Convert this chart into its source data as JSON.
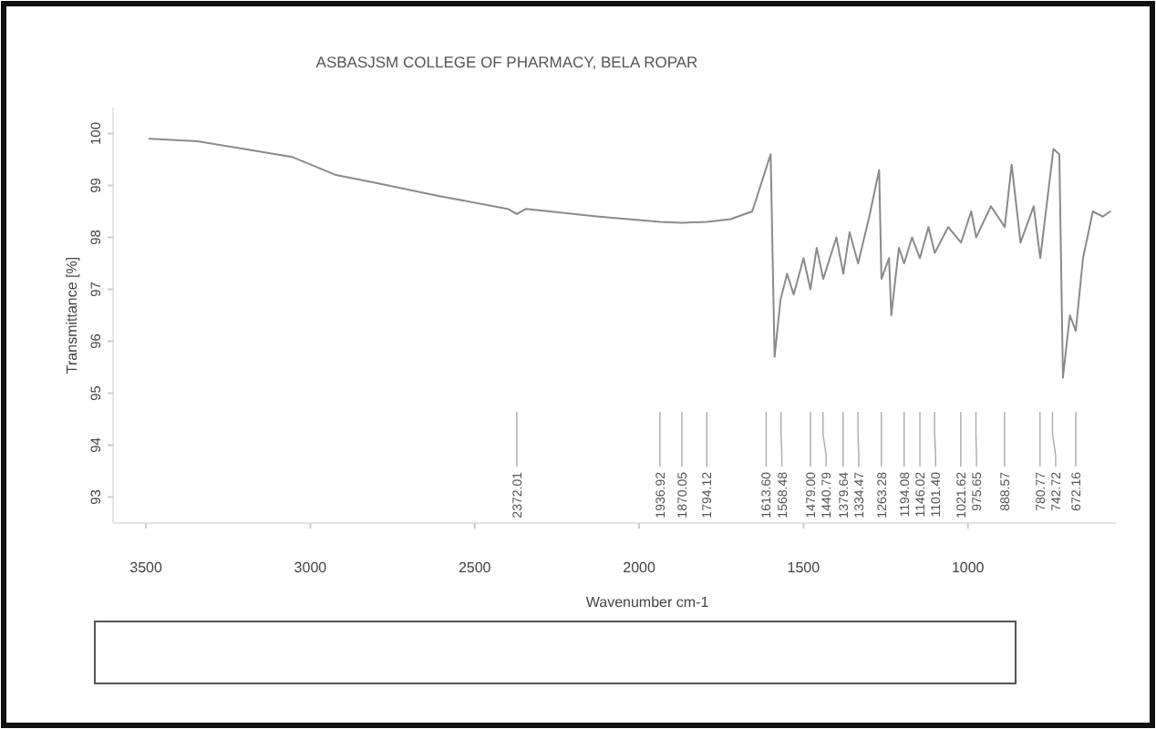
{
  "chart_data": {
    "type": "line",
    "title": "ASBASJSM COLLEGE OF PHARMACY, BELA ROPAR",
    "xlabel": "Wavenumber cm-1",
    "ylabel": "Transmittance [%]",
    "x": [
      3490,
      3344,
      3200,
      3056,
      2922,
      2800,
      2611,
      2400,
      2372,
      2344,
      2122,
      1936,
      1870,
      1794,
      1722,
      1656,
      1600,
      1588,
      1570,
      1550,
      1530,
      1500,
      1479,
      1460,
      1440,
      1420,
      1400,
      1379,
      1360,
      1334,
      1300,
      1270,
      1263,
      1240,
      1233,
      1210,
      1194,
      1170,
      1146,
      1120,
      1101,
      1060,
      1021,
      990,
      975,
      930,
      888,
      867,
      840,
      800,
      780,
      740,
      722,
      711,
      690,
      672,
      650,
      620,
      590,
      567
    ],
    "series": [
      {
        "color": "#8a8a8a",
        "values": [
          99.9,
          99.85,
          99.7,
          99.55,
          99.2,
          99.05,
          98.8,
          98.55,
          98.45,
          98.55,
          98.4,
          98.3,
          98.28,
          98.3,
          98.35,
          98.5,
          99.6,
          95.7,
          96.8,
          97.3,
          96.9,
          97.6,
          97.0,
          97.8,
          97.2,
          97.6,
          98.0,
          97.3,
          98.1,
          97.5,
          98.4,
          99.3,
          97.2,
          97.6,
          96.5,
          97.8,
          97.5,
          98.0,
          97.6,
          98.2,
          97.7,
          98.2,
          97.9,
          98.5,
          98.0,
          98.6,
          98.2,
          99.4,
          97.9,
          98.6,
          97.6,
          99.7,
          99.6,
          95.3,
          96.5,
          96.2,
          97.6,
          98.5,
          98.4,
          98.5
        ]
      }
    ],
    "xlim": [
      3600,
      550
    ],
    "xticks": [
      3500,
      3000,
      2500,
      2000,
      1500,
      1000
    ],
    "ylim": [
      92.5,
      100.5
    ],
    "yticks": [
      93,
      94,
      95,
      96,
      97,
      98,
      99,
      100
    ],
    "grid": false,
    "line_style": "solid",
    "marker": "none",
    "annotations": [
      {
        "text": "2372.01",
        "x": 2372.01
      },
      {
        "text": "1936.92",
        "x": 1936.92
      },
      {
        "text": "1870.05",
        "x": 1870.05
      },
      {
        "text": "1794.12",
        "x": 1794.12
      },
      {
        "text": "1613.60",
        "x": 1613.6
      },
      {
        "text": "1568.48",
        "x": 1568.48
      },
      {
        "text": "1479.00",
        "x": 1479.0
      },
      {
        "text": "1440.79",
        "x": 1440.79
      },
      {
        "text": "1379.64",
        "x": 1379.64
      },
      {
        "text": "1334.47",
        "x": 1334.47
      },
      {
        "text": "1263.28",
        "x": 1263.28
      },
      {
        "text": "1194.08",
        "x": 1194.08
      },
      {
        "text": "1146.02",
        "x": 1146.02
      },
      {
        "text": "1101.40",
        "x": 1101.4
      },
      {
        "text": "1021.62",
        "x": 1021.62
      },
      {
        "text": "975.65",
        "x": 975.65
      },
      {
        "text": "888.57",
        "x": 888.57
      },
      {
        "text": "780.77",
        "x": 780.77
      },
      {
        "text": "742.72",
        "x": 742.72
      },
      {
        "text": "672.16",
        "x": 672.16
      }
    ]
  }
}
